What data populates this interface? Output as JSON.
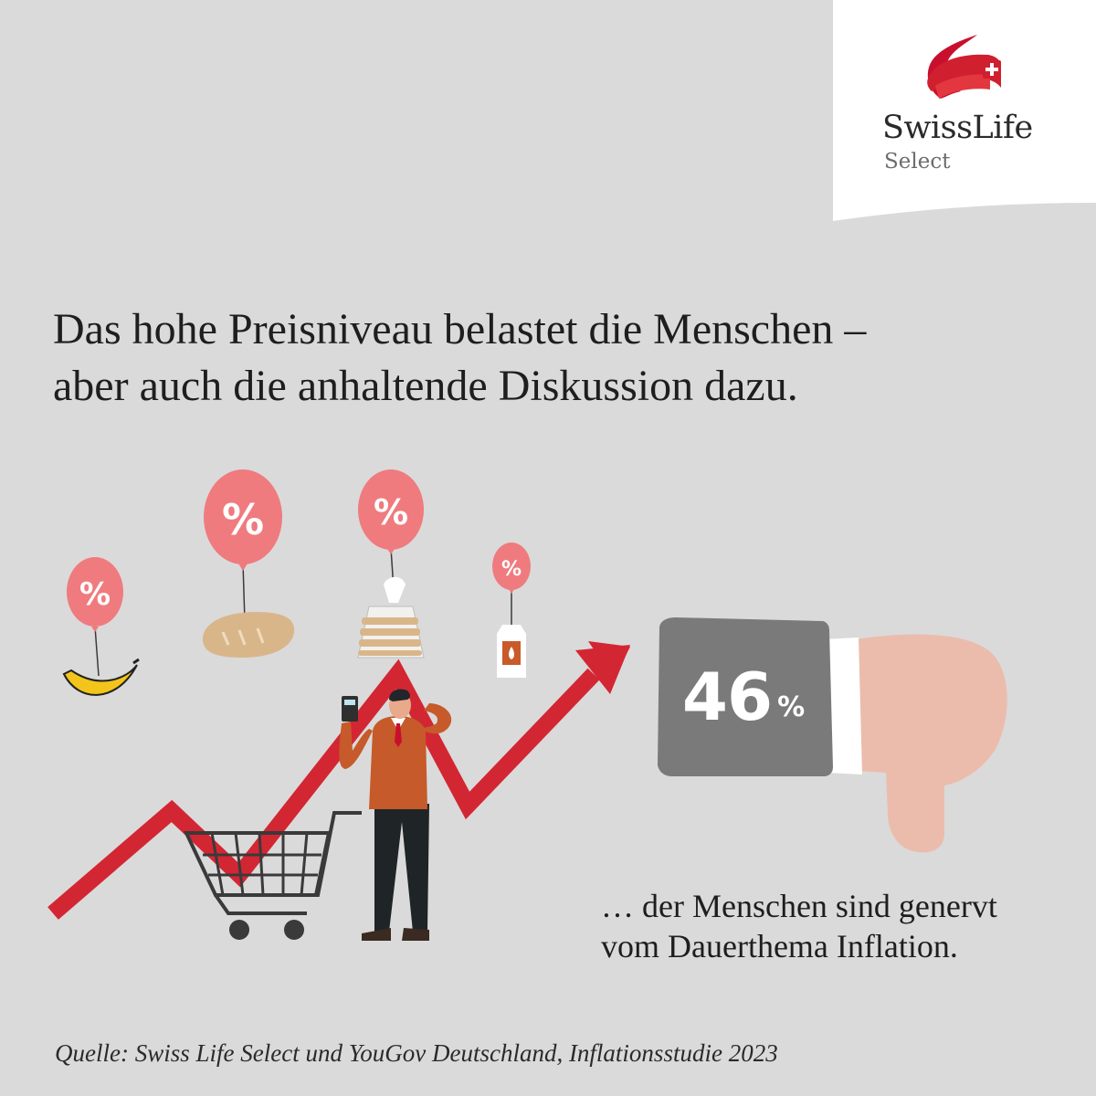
{
  "brand": {
    "name": "SwissLife",
    "subtitle": "Select"
  },
  "headline": {
    "line1": "Das hohe Preisniveau belastet die Menschen –",
    "line2": "aber auch die anhaltende Diskussion dazu."
  },
  "illustration": {
    "balloon_symbol": "%"
  },
  "statistic": {
    "value": "46",
    "unit": "%",
    "caption_line1": "… der Menschen sind genervt",
    "caption_line2": "vom Dauerthema Inflation."
  },
  "source": "Quelle: Swiss Life Select und YouGov Deutschland, Inflationsstudie 2023",
  "colors": {
    "background": "#dadada",
    "brand_red": "#d0202f",
    "balloon": "#ef7b7f",
    "arrow": "#d32633",
    "stat_box": "#7a7a7a",
    "hand": "#ebbcac"
  }
}
